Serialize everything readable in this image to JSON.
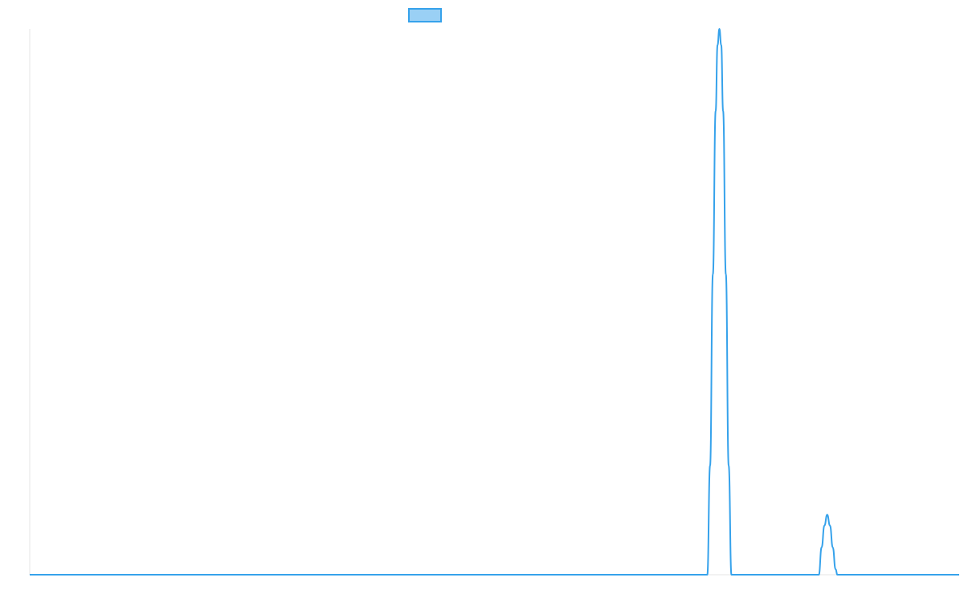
{
  "colors": {
    "series_line": "#36a2eb",
    "series_fill": "#9ad0f5",
    "axis_line": "#e6e6e6",
    "background": "#ffffff"
  },
  "chart_data": {
    "type": "line",
    "title": "",
    "xlabel": "",
    "ylabel": "",
    "grid": false,
    "legend_position": "top-center",
    "xlim": [
      0,
      1000
    ],
    "ylim": [
      0,
      100
    ],
    "series": [
      {
        "name": "",
        "points": [
          [
            0,
            0
          ],
          [
            725,
            0
          ],
          [
            729,
            0
          ],
          [
            732,
            20
          ],
          [
            735,
            55
          ],
          [
            738,
            85
          ],
          [
            740,
            97
          ],
          [
            742,
            100
          ],
          [
            744,
            97
          ],
          [
            746,
            85
          ],
          [
            749,
            55
          ],
          [
            752,
            20
          ],
          [
            755,
            0
          ],
          [
            761,
            0
          ],
          [
            843,
            0
          ],
          [
            849,
            0
          ],
          [
            852,
            5
          ],
          [
            855,
            9
          ],
          [
            858,
            11
          ],
          [
            861,
            9
          ],
          [
            864,
            5
          ],
          [
            867,
            1
          ],
          [
            869,
            0
          ],
          [
            1000,
            0
          ]
        ]
      }
    ]
  }
}
